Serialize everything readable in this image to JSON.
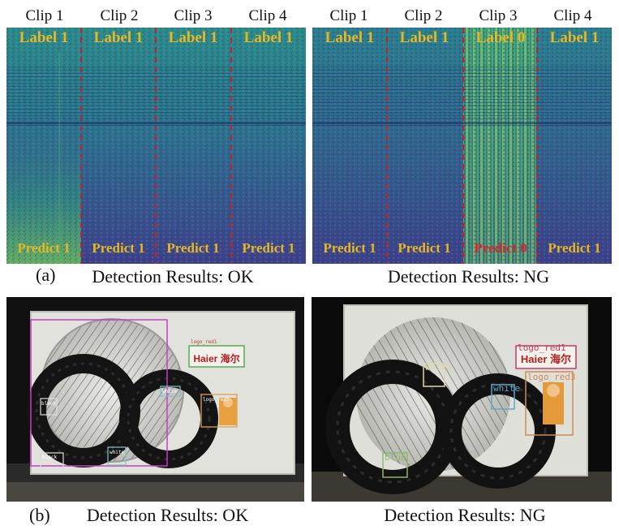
{
  "clips": [
    "Clip 1",
    "Clip 2",
    "Clip 3",
    "Clip 4"
  ],
  "panel_a": {
    "letter": "(a)",
    "ok": {
      "labels": [
        "Label  1",
        "Label  1",
        "Label  1",
        "Label  1"
      ],
      "predicts": [
        "Predict 1",
        "Predict 1",
        "Predict 1",
        "Predict 1"
      ],
      "caption": "Detection Results: OK"
    },
    "ng": {
      "labels": [
        "Label  1",
        "Label  1",
        "Label  0",
        "Label  1"
      ],
      "predicts": [
        "Predict 1",
        "Predict 1",
        "Predict 0",
        "Predict 1"
      ],
      "caption": "Detection Results: NG"
    }
  },
  "panel_b": {
    "letter": "(b)",
    "ok": {
      "caption": "Detection Results: OK",
      "brand": "Haier 海尔",
      "boxes": {
        "logo_red1": "logo_red1",
        "logo_red3": "logo_red3",
        "black1": "black",
        "black2": "black",
        "white1": "white",
        "white2": "white"
      }
    },
    "ng": {
      "caption": "Detection Results: NG",
      "brand": "Haier 海尔",
      "boxes": {
        "logo_red1": "logo_red1",
        "logo_red3": "logo_red3",
        "white1": "white",
        "white2": "white",
        "blue": "blue"
      }
    }
  },
  "colors": {
    "label_ok": "#e8b820",
    "label_bad": "#d8262a",
    "divider": "#c0242a"
  }
}
